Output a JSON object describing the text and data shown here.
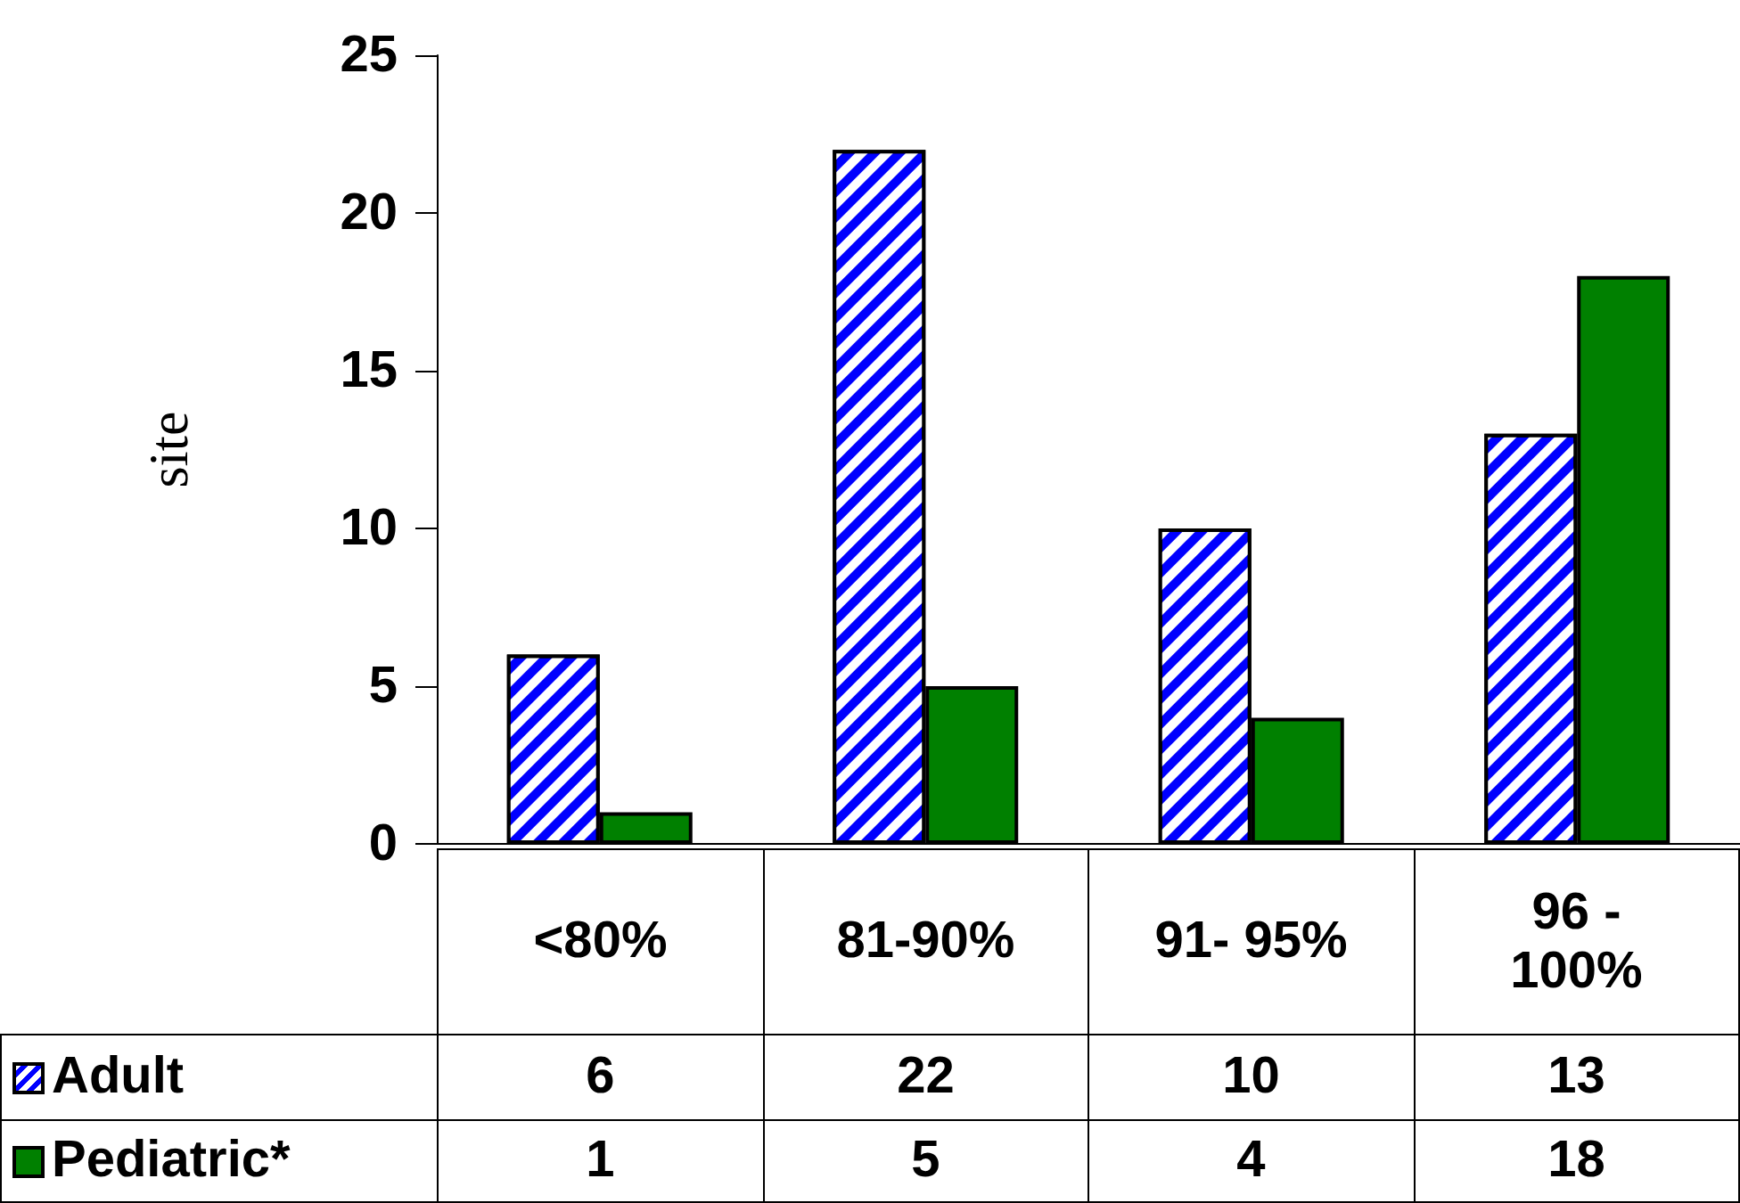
{
  "chart_data": {
    "type": "bar",
    "ylabel": "site",
    "categories": [
      "<80%",
      "81-90%",
      "91- 95%",
      "96 - 100%"
    ],
    "series": [
      {
        "name": "Adult",
        "color": "#0000ff",
        "values": [
          6,
          22,
          10,
          13
        ]
      },
      {
        "name": "Pediatric*",
        "color": "#008000",
        "values": [
          1,
          5,
          4,
          18
        ]
      }
    ],
    "ylim": [
      0,
      25
    ],
    "yticks": [
      0,
      5,
      10,
      15,
      20,
      25
    ],
    "grid": false,
    "legend": "bottom left",
    "data_labels": true
  }
}
